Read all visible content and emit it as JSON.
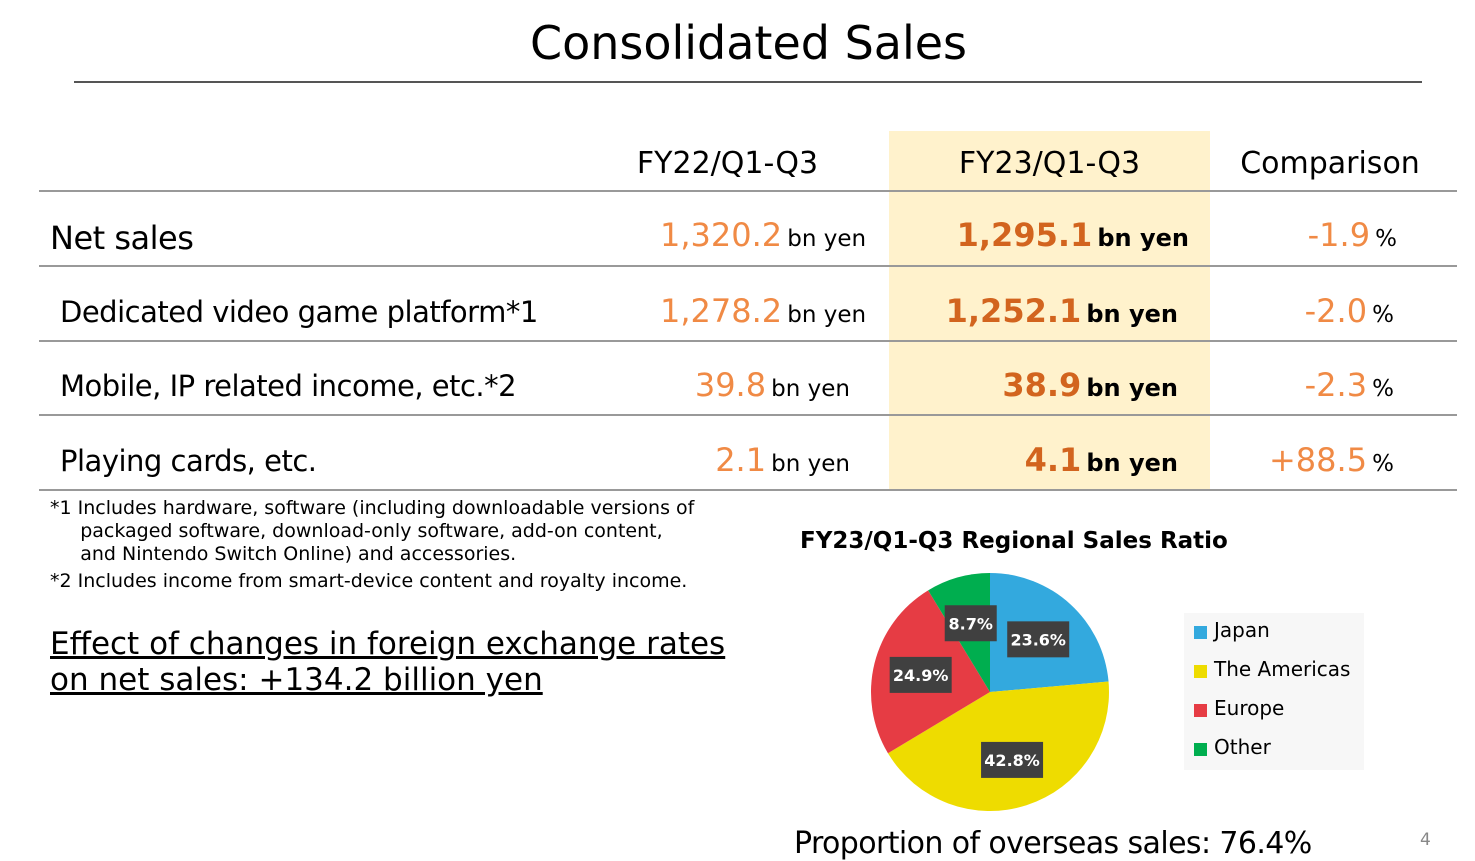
{
  "title": "Consolidated Sales",
  "table": {
    "headers": [
      "FY22/Q1-Q3",
      "FY23/Q1-Q3",
      "Comparison"
    ],
    "rows": [
      {
        "label": "Net sales",
        "fy22": "1,320.2",
        "fy23": "1,295.1",
        "comp": "-1.9",
        "unit": "bn yen",
        "pct": "%"
      },
      {
        "label": "Dedicated video game platform*1",
        "fy22": "1,278.2",
        "fy23": "1,252.1",
        "comp": "-2.0",
        "unit": "bn yen",
        "pct": "%"
      },
      {
        "label": "Mobile, IP related income, etc.*2",
        "fy22": "39.8",
        "fy23": "38.9",
        "comp": "-2.3",
        "unit": "bn yen",
        "pct": "%"
      },
      {
        "label": "Playing cards, etc.",
        "fy22": "2.1",
        "fy23": "4.1",
        "comp": "+88.5",
        "unit": "bn yen",
        "pct": "%"
      }
    ]
  },
  "notes": [
    "*1 Includes hardware, software (including downloadable versions of\n     packaged software, download-only software, add-on content,\n     and Nintendo Switch Online) and accessories.",
    "*2 Includes income from smart-device content and royalty income."
  ],
  "fx": {
    "line1": "Effect of changes in foreign exchange rates",
    "line2": "on net sales: +134.2 billion yen"
  },
  "overseas": "Proportion of overseas sales: 76.4%",
  "page_number": "4",
  "colors": {
    "accent_light": "#F08A45",
    "accent_bold": "#D2641E",
    "highlight": "#FFF2CC"
  },
  "chart_data": {
    "type": "pie",
    "title": "FY23/Q1-Q3 Regional Sales Ratio",
    "categories": [
      "Japan",
      "The Americas",
      "Europe",
      "Other"
    ],
    "values": [
      23.6,
      42.8,
      24.9,
      8.7
    ],
    "labels": [
      "23.6%",
      "42.8%",
      "24.9%",
      "8.7%"
    ],
    "colors": [
      "#33A9DE",
      "#EEDC00",
      "#E63C44",
      "#00AE4F"
    ],
    "legend": "right"
  }
}
